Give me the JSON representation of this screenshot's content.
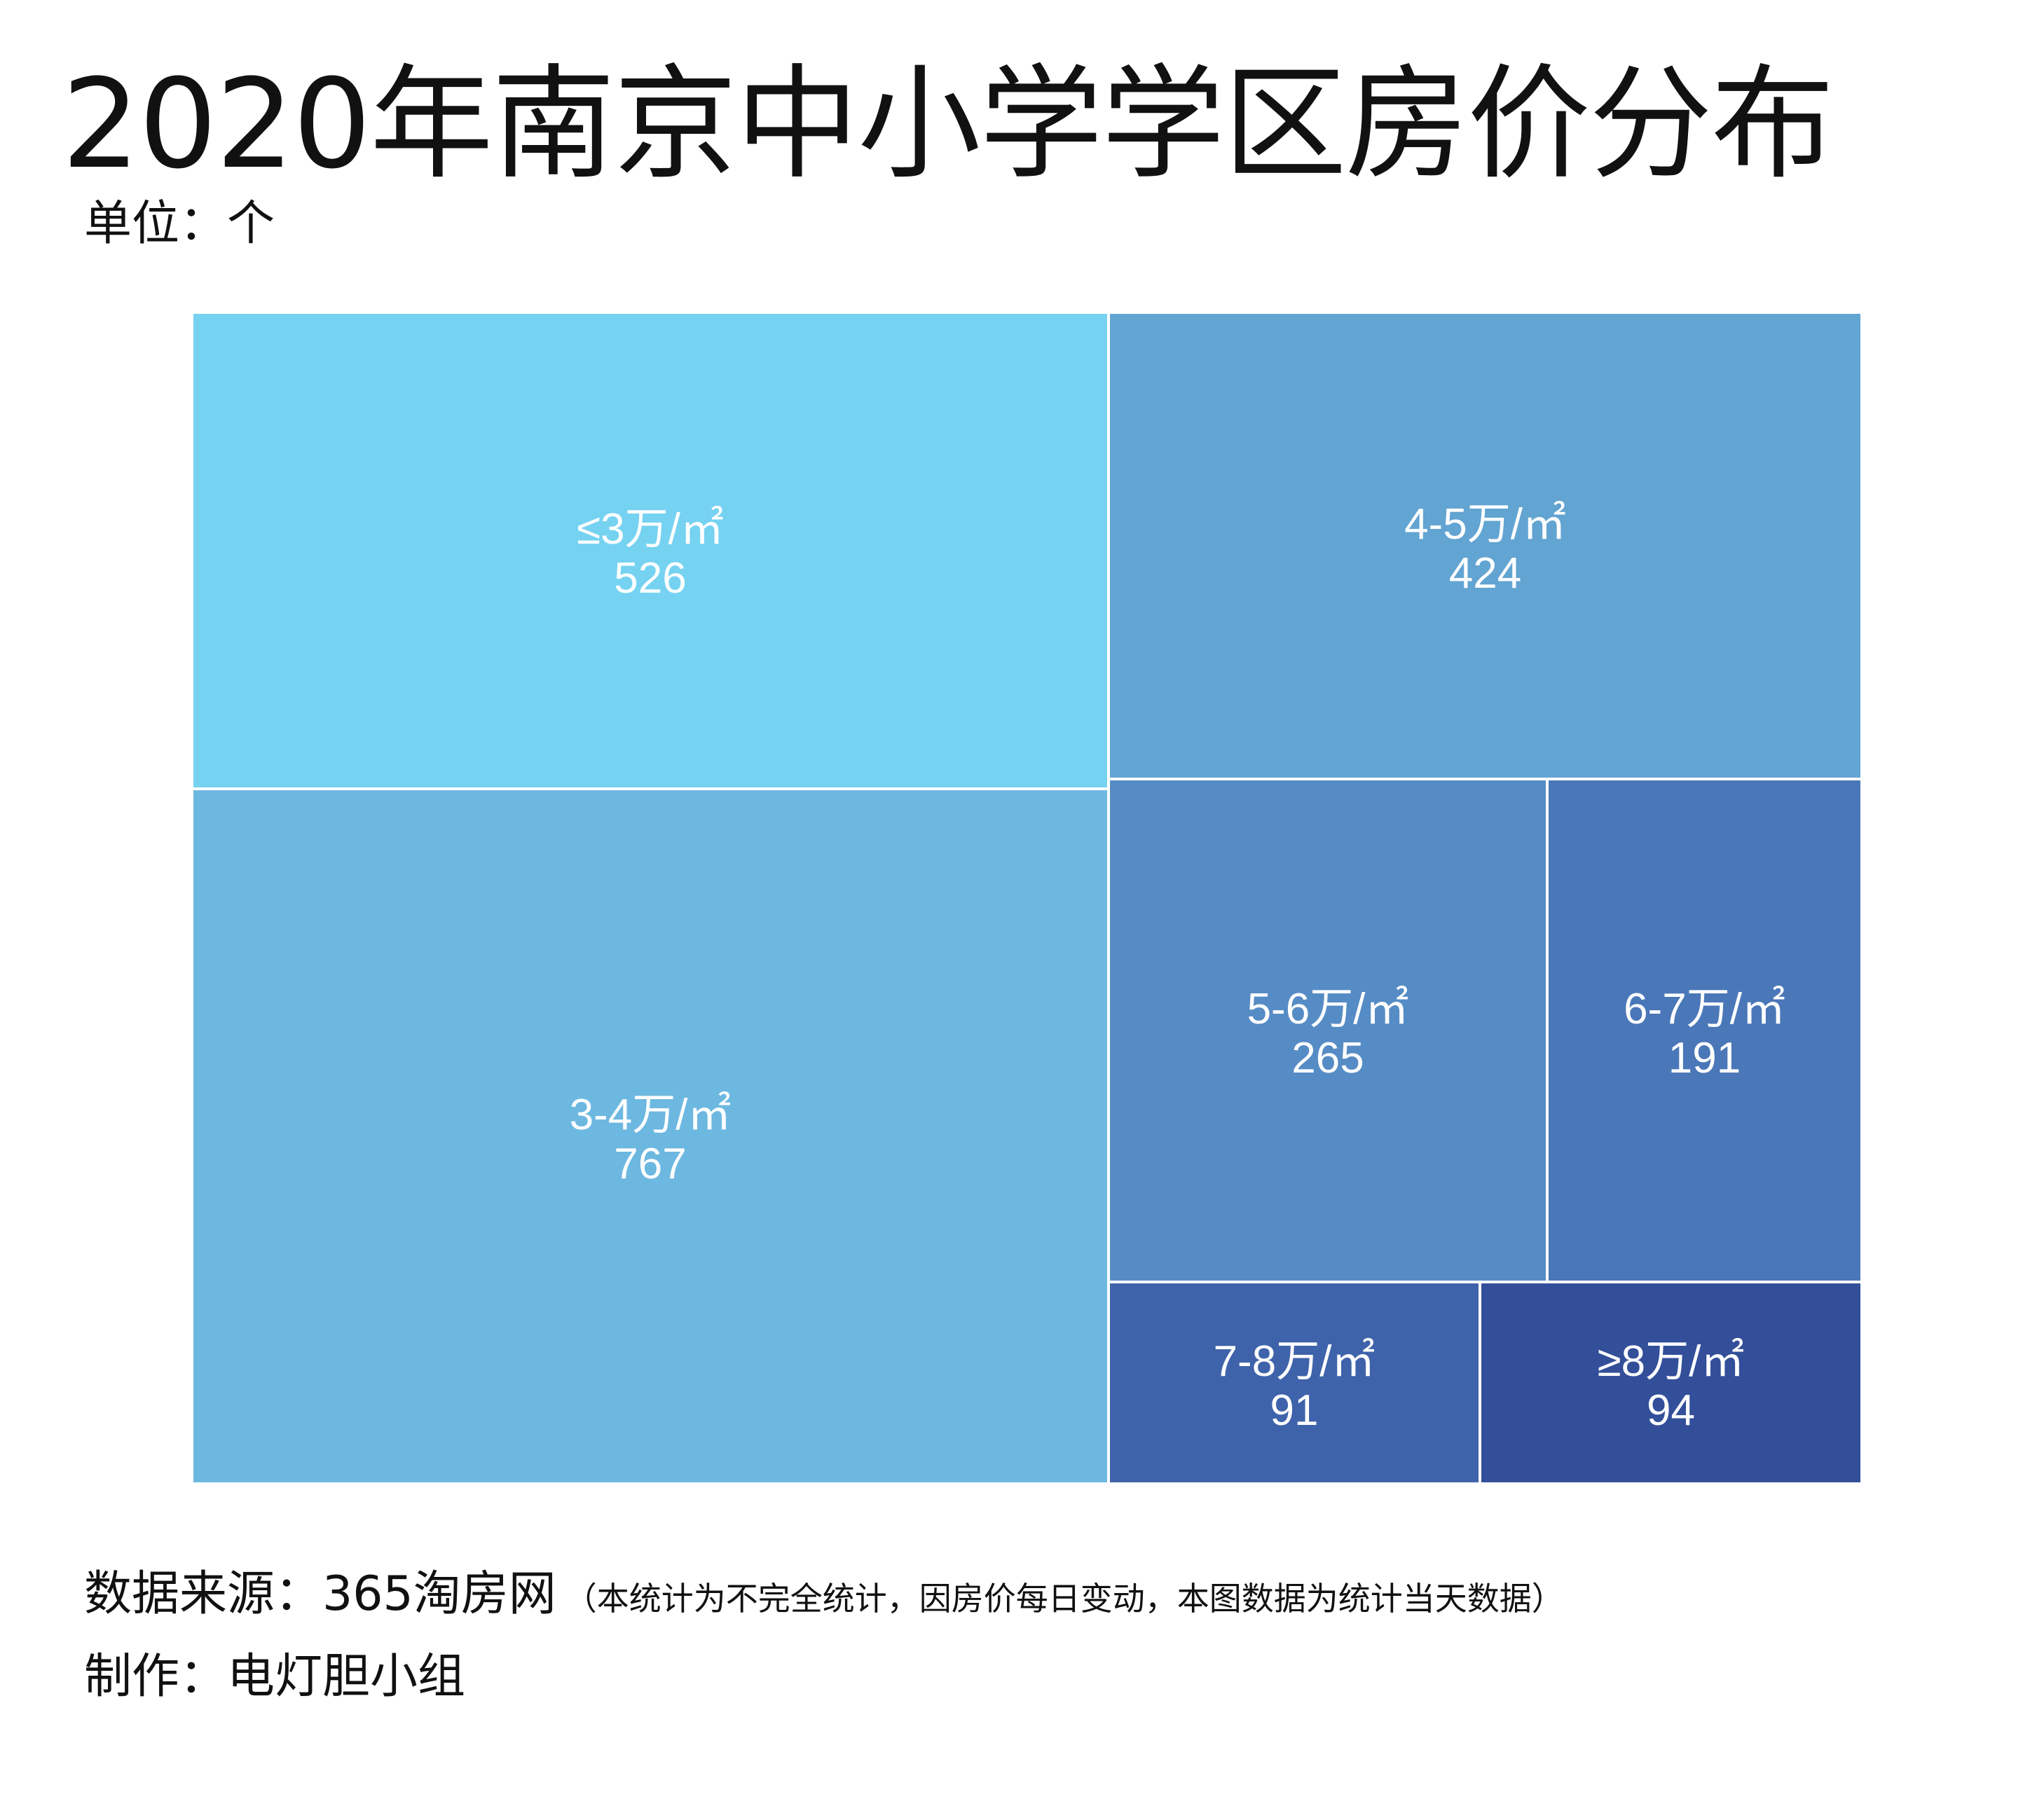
{
  "title": "2020年南京中小学学区房价分布",
  "unit": "单位：个",
  "chart_data": {
    "type": "treemap",
    "title": "2020年南京中小学学区房价分布",
    "unit": "个",
    "categories": [
      "≤3万/㎡",
      "3-4万/㎡",
      "4-5万/㎡",
      "5-6万/㎡",
      "6-7万/㎡",
      "7-8万/㎡",
      "≥8万/㎡"
    ],
    "values": [
      526,
      767,
      424,
      265,
      191,
      91,
      94
    ],
    "colors": [
      "#76D2F1",
      "#6DB8E1",
      "#62A4D2",
      "#568CC5",
      "#4A77B8",
      "#3F63AA",
      "#334F9A"
    ]
  },
  "footer": {
    "source": "数据来源：365淘房网",
    "note": "（本统计为不完全统计，因房价每日变动，本图数据为统计当天数据）",
    "credit": "制作：电灯胆小组"
  }
}
